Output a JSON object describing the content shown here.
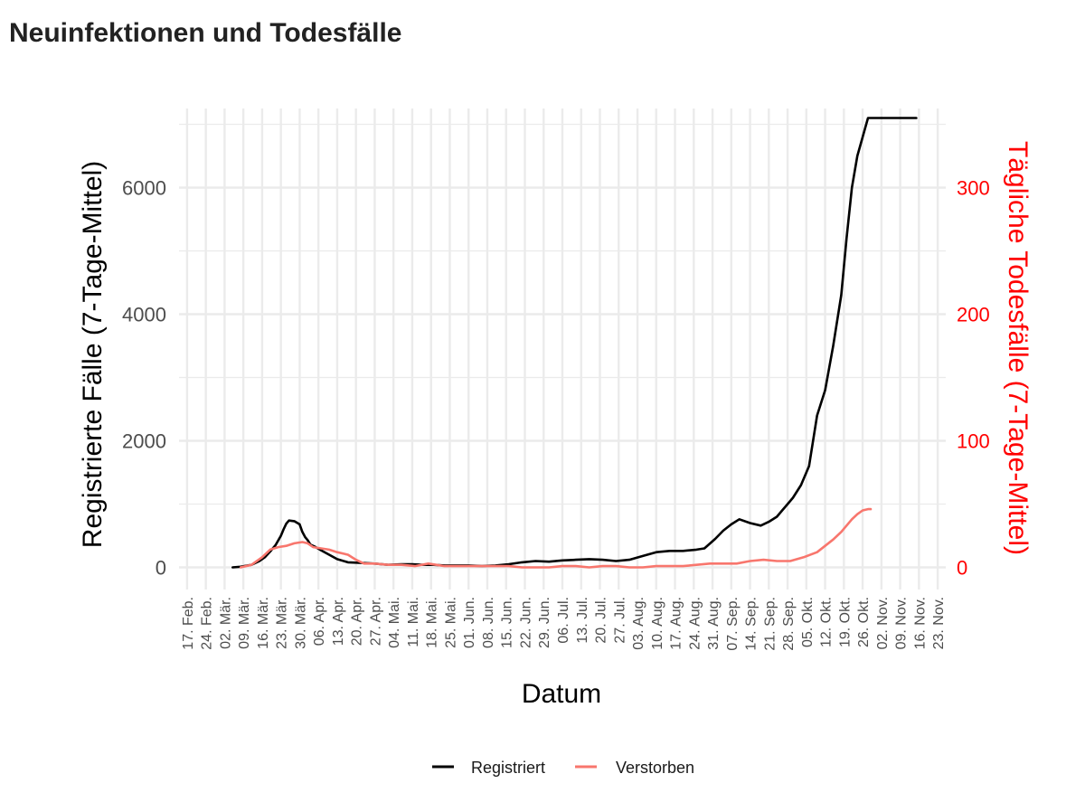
{
  "page": {
    "title": "Neuinfektionen und Todesfälle"
  },
  "chart_data": {
    "type": "line",
    "title": "Neuinfektionen und Todesfälle",
    "xlabel": "Datum",
    "ylabel": "Registrierte Fälle (7-Tage-Mittel)",
    "ylabel_right": "Tägliche Todesfälle (7-Tage-Mittel)",
    "ylim": [
      -350,
      7250
    ],
    "ylim_right": [
      -17.5,
      362.5
    ],
    "y_ticks": [
      0,
      2000,
      4000,
      6000
    ],
    "y_tick_labels": [
      "0",
      "2000",
      "4000",
      "6000"
    ],
    "y_right_ticks": [
      0,
      100,
      200,
      300
    ],
    "y_right_tick_labels": [
      "0",
      "100",
      "200",
      "300"
    ],
    "x_axis_start": "2020-02-17",
    "x_lim_days": [
      -3,
      283
    ],
    "x_ticks_days": [
      0,
      7,
      14,
      21,
      28,
      35,
      42,
      49,
      56,
      63,
      70,
      77,
      84,
      91,
      98,
      105,
      112,
      119,
      126,
      133,
      140,
      147,
      154,
      161,
      168,
      175,
      182,
      189,
      196,
      203,
      210,
      217,
      224,
      231,
      238,
      245,
      252,
      259,
      266,
      273,
      280
    ],
    "x_tick_labels": [
      "17. Feb.",
      "24. Feb.",
      "02. Mär.",
      "09. Mär.",
      "16. Mär.",
      "23. Mär.",
      "30. Mär.",
      "06. Apr.",
      "13. Apr.",
      "20. Apr.",
      "27. Apr.",
      "04. Mai.",
      "11. Mai.",
      "18. Mai.",
      "25. Mai.",
      "01. Jun.",
      "08. Jun.",
      "15. Jun.",
      "22. Jun.",
      "29. Jun.",
      "06. Jul.",
      "13. Jul.",
      "20. Jul.",
      "27. Jul.",
      "03. Aug.",
      "10. Aug.",
      "17. Aug.",
      "24. Aug.",
      "31. Aug.",
      "07. Sep.",
      "14. Sep.",
      "21. Sep.",
      "28. Sep.",
      "05. Okt.",
      "12. Okt.",
      "19. Okt.",
      "26. Okt.",
      "02. Nov.",
      "09. Nov.",
      "16. Nov.",
      "23. Nov."
    ],
    "series": [
      {
        "name": "Registriert",
        "axis": "left",
        "color": "#000000",
        "x_days": [
          17,
          20,
          24,
          27,
          29,
          31,
          33,
          35,
          36,
          37,
          38,
          40,
          42,
          43,
          44,
          45,
          46,
          48,
          50,
          53,
          56,
          60,
          65,
          70,
          75,
          80,
          84,
          88,
          92,
          96,
          100,
          105,
          110,
          115,
          120,
          125,
          130,
          135,
          140,
          145,
          150,
          155,
          160,
          165,
          170,
          175,
          180,
          185,
          190,
          193,
          197,
          200,
          203,
          206,
          210,
          214,
          217,
          220,
          222,
          224,
          226,
          229,
          232,
          235,
          238,
          241,
          244,
          246,
          248,
          250,
          252,
          254,
          256,
          258,
          260,
          262,
          264,
          266,
          268,
          270,
          271,
          272
        ],
        "values": [
          0,
          10,
          40,
          100,
          160,
          250,
          350,
          500,
          600,
          690,
          740,
          730,
          680,
          560,
          480,
          430,
          360,
          320,
          270,
          200,
          130,
          80,
          70,
          60,
          40,
          50,
          50,
          40,
          40,
          30,
          30,
          30,
          20,
          30,
          50,
          80,
          100,
          90,
          110,
          120,
          130,
          120,
          100,
          120,
          180,
          240,
          260,
          260,
          280,
          300,
          450,
          580,
          680,
          760,
          700,
          660,
          720,
          800,
          900,
          1000,
          1100,
          1300,
          1600,
          2400,
          2800,
          3500,
          4300,
          5200,
          6000,
          6500,
          6800,
          7100,
          7100,
          7100,
          7100,
          7100,
          7100,
          7100,
          7100,
          7100,
          7100,
          7100
        ]
      },
      {
        "name": "Verstorben",
        "axis": "right",
        "color": "#f8766d",
        "x_days": [
          20,
          24,
          28,
          31,
          34,
          37,
          40,
          43,
          45,
          47,
          50,
          53,
          56,
          60,
          63,
          66,
          70,
          75,
          80,
          85,
          90,
          93,
          96,
          100,
          105,
          110,
          115,
          120,
          125,
          130,
          135,
          140,
          145,
          150,
          155,
          160,
          165,
          170,
          175,
          180,
          185,
          190,
          195,
          200,
          205,
          210,
          215,
          220,
          225,
          230,
          235,
          238,
          241,
          244,
          246,
          248,
          250,
          252,
          254,
          255
        ],
        "values": [
          0,
          2,
          8,
          14,
          16,
          17,
          19,
          20,
          19,
          16,
          15,
          14,
          12,
          10,
          6,
          3,
          3,
          2,
          2,
          1,
          3,
          2,
          1,
          1,
          1,
          1,
          1,
          1,
          0,
          0,
          0,
          1,
          1,
          0,
          1,
          1,
          0,
          0,
          1,
          1,
          1,
          2,
          3,
          3,
          3,
          5,
          6,
          5,
          5,
          8,
          12,
          17,
          22,
          28,
          33,
          38,
          42,
          45,
          46,
          46
        ]
      }
    ],
    "legend": {
      "position": "bottom",
      "entries": [
        "Registriert",
        "Verstorben"
      ]
    }
  }
}
